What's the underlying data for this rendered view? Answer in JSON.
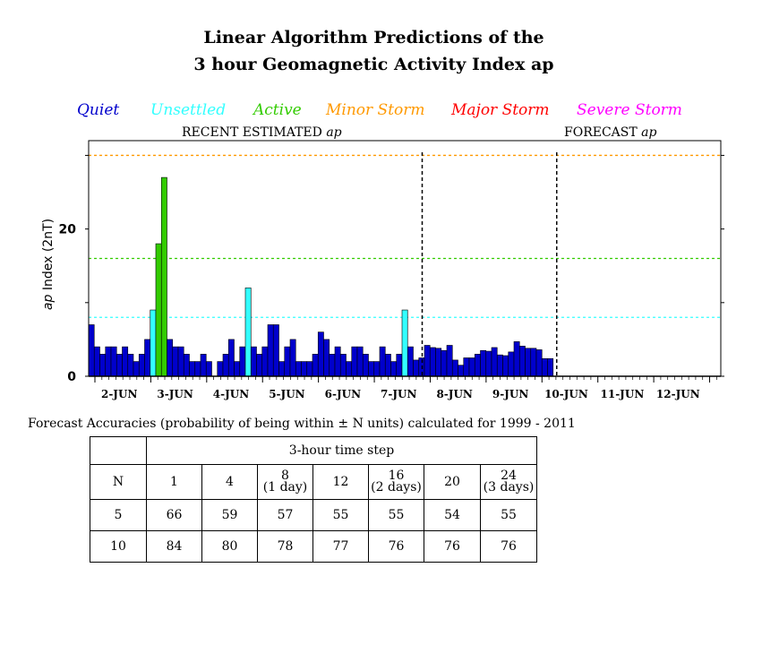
{
  "header": {
    "title_line1": "Linear Algorithm Predictions of the",
    "title_line2": "3 hour Geomagnetic Activity Index ap"
  },
  "legend": [
    {
      "label": "Quiet",
      "color": "#0000cc"
    },
    {
      "label": "Unsettled",
      "color": "#33ffff"
    },
    {
      "label": "Active",
      "color": "#33cc00"
    },
    {
      "label": "Minor Storm",
      "color": "#ff9900"
    },
    {
      "label": "Major Storm",
      "color": "#ff0000"
    },
    {
      "label": "Severe Storm",
      "color": "#ff00ff"
    }
  ],
  "sections": {
    "recent_label": "RECENT ESTIMATED",
    "forecast_label": "FORECAST",
    "ap_word": "ap"
  },
  "chart_data": {
    "type": "bar",
    "ylabel_italic": "ap",
    "ylabel_rest": " Index (2nT)",
    "yticks": [
      0,
      20
    ],
    "ylim": [
      0,
      32
    ],
    "day_labels": [
      "2-JUN",
      "3-JUN",
      "4-JUN",
      "5-JUN",
      "6-JUN",
      "7-JUN",
      "8-JUN",
      "9-JUN",
      "10-JUN",
      "11-JUN",
      "12-JUN"
    ],
    "thresholds": [
      {
        "level": "Unsettled",
        "value": 8,
        "color": "#33ffff"
      },
      {
        "level": "Active",
        "value": 16,
        "color": "#33cc00"
      },
      {
        "level": "Minor Storm",
        "value": 30,
        "color": "#ff9900"
      }
    ],
    "recent_values": [
      7,
      4,
      3,
      4,
      4,
      3,
      4,
      3,
      2,
      3,
      5,
      9,
      18,
      27,
      5,
      4,
      4,
      3,
      2,
      2,
      3,
      2,
      0,
      2,
      3,
      5,
      2,
      4,
      12,
      4,
      3,
      4,
      7,
      7,
      2,
      4,
      5,
      2,
      2,
      2,
      3,
      6,
      5,
      3,
      4,
      3,
      2,
      4,
      4,
      3,
      2,
      2,
      4,
      3,
      2,
      3,
      9,
      4
    ],
    "forecast_values": [
      2.2,
      2.5,
      4.2,
      3.9,
      3.8,
      3.5,
      4.2,
      2.2,
      1.5,
      2.5,
      2.5,
      3.0,
      3.5,
      3.4,
      3.9,
      2.9,
      2.8,
      3.3,
      4.7,
      4.1,
      3.8,
      3.8,
      3.6,
      2.4,
      2.4
    ],
    "colors": {
      "quiet": "#0000cc",
      "unsettled": "#33ffff",
      "active": "#33cc00"
    }
  },
  "accuracy": {
    "title": "Forecast Accuracies (probability of being within ± N units) calculated for 1999 - 2011",
    "timestep_header": "3-hour time step",
    "n_label": "N",
    "steps": [
      {
        "top": "1",
        "bottom": ""
      },
      {
        "top": "4",
        "bottom": ""
      },
      {
        "top": "8",
        "bottom": "(1 day)"
      },
      {
        "top": "12",
        "bottom": ""
      },
      {
        "top": "16",
        "bottom": "(2 days)"
      },
      {
        "top": "20",
        "bottom": ""
      },
      {
        "top": "24",
        "bottom": "(3 days)"
      }
    ],
    "rows": [
      {
        "n": "5",
        "values": [
          "66",
          "59",
          "57",
          "55",
          "55",
          "54",
          "55"
        ]
      },
      {
        "n": "10",
        "values": [
          "84",
          "80",
          "78",
          "77",
          "76",
          "76",
          "76"
        ]
      }
    ]
  }
}
